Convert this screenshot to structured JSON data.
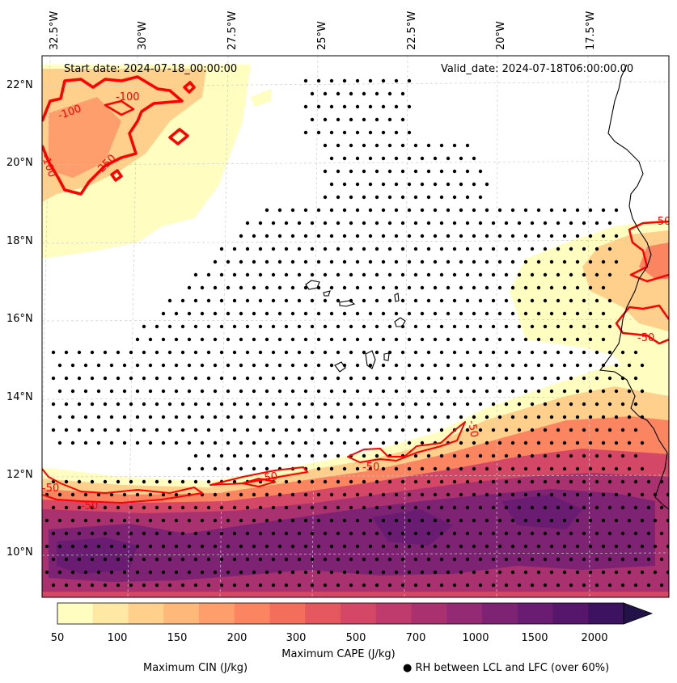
{
  "map": {
    "start_date": "Start date: 2024-07-18_00:00:00",
    "valid_date": "Valid_date: 2024-07-18T06:00:00.00",
    "longitude_labels": [
      "32.5°W",
      "30°W",
      "27.5°W",
      "25°W",
      "22.5°W",
      "20°W",
      "17.5°W"
    ],
    "latitude_labels": [
      "22°N",
      "20°N",
      "18°N",
      "16°N",
      "14°N",
      "12°N",
      "10°N"
    ],
    "extent": {
      "lon_min": -33.1,
      "lon_max": -15.1,
      "lat_min": 8.9,
      "lat_max": 22.8
    },
    "cin_contour_labels": [
      "-100",
      "-100",
      "-250",
      "-100",
      "-50",
      "-50",
      "-50",
      "-50",
      "-50",
      "-50",
      "-50"
    ]
  },
  "colorbar": {
    "title": "Maximum CAPE (J/kg)",
    "tick_labels": [
      "50",
      "100",
      "150",
      "200",
      "300",
      "500",
      "700",
      "1000",
      "1500",
      "2000"
    ],
    "colors": [
      "#fffdbf",
      "#fee8a4",
      "#fed08b",
      "#feb87a",
      "#fd9e6c",
      "#fb8461",
      "#f36e5b",
      "#e65860",
      "#d44767",
      "#bf3a6d",
      "#aa3170",
      "#932a73",
      "#7e2373",
      "#691c71",
      "#55166b",
      "#3d1260",
      "#231247"
    ],
    "extend": "max"
  },
  "legend": {
    "cin_label": "Maximum CIN (J/kg)",
    "cin_color": "#ff0000",
    "rh_label": "RH between LCL and LFC (over 60%)",
    "rh_marker": "● "
  }
}
